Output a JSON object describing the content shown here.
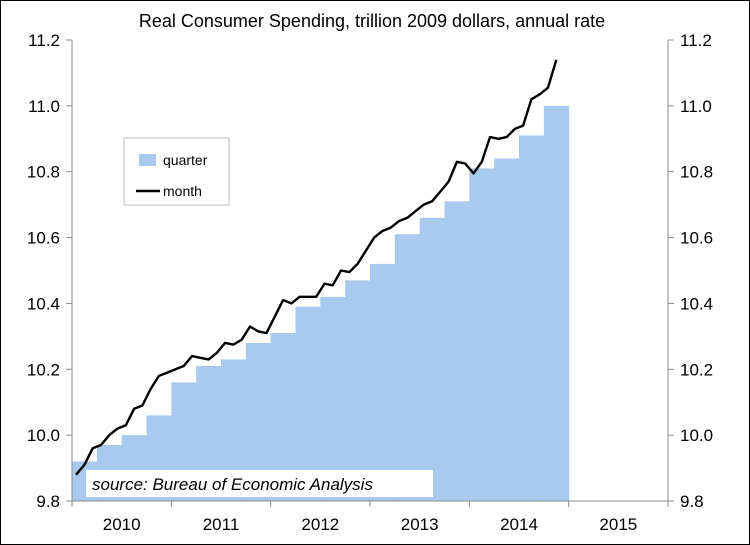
{
  "chart_data": {
    "type": "area",
    "title": "Real Consumer Spending, trillion 2009 dollars, annual rate",
    "xlabel": "",
    "ylabel": "",
    "ylim": [
      9.8,
      11.2
    ],
    "yticks": [
      "9.8",
      "10.0",
      "10.2",
      "10.4",
      "10.6",
      "10.8",
      "11.0",
      "11.2"
    ],
    "secondary_yticks": [
      "9.8",
      "10.0",
      "10.2",
      "10.4",
      "10.6",
      "10.8",
      "11.0",
      "11.2"
    ],
    "x_categories": [
      "2010",
      "2011",
      "2012",
      "2013",
      "2014",
      "2015"
    ],
    "grid": false,
    "legend_position": "left-upper",
    "annotation": "source: Bureau of Economic Analysis",
    "colors": {
      "quarter": "#a9c9ef",
      "month": "#000000"
    },
    "series": [
      {
        "name": "quarter",
        "type": "step-area",
        "x": [
          "2010Q1",
          "2010Q2",
          "2010Q3",
          "2010Q4",
          "2011Q1",
          "2011Q2",
          "2011Q3",
          "2011Q4",
          "2012Q1",
          "2012Q2",
          "2012Q3",
          "2012Q4",
          "2013Q1",
          "2013Q2",
          "2013Q3",
          "2013Q4",
          "2014Q1",
          "2014Q2",
          "2014Q3",
          "2014Q4"
        ],
        "values": [
          9.92,
          9.97,
          10.0,
          10.06,
          10.16,
          10.21,
          10.23,
          10.28,
          10.31,
          10.39,
          10.42,
          10.47,
          10.52,
          10.61,
          10.66,
          10.71,
          10.81,
          10.84,
          10.91,
          11.0
        ]
      },
      {
        "name": "month",
        "type": "line",
        "x": [
          "2010-01",
          "2010-02",
          "2010-03",
          "2010-04",
          "2010-05",
          "2010-06",
          "2010-07",
          "2010-08",
          "2010-09",
          "2010-10",
          "2010-11",
          "2010-12",
          "2011-01",
          "2011-02",
          "2011-03",
          "2011-04",
          "2011-05",
          "2011-06",
          "2011-07",
          "2011-08",
          "2011-09",
          "2011-10",
          "2011-11",
          "2011-12",
          "2012-01",
          "2012-02",
          "2012-03",
          "2012-04",
          "2012-05",
          "2012-06",
          "2012-07",
          "2012-08",
          "2012-09",
          "2012-10",
          "2012-11",
          "2012-12",
          "2013-01",
          "2013-02",
          "2013-03",
          "2013-04",
          "2013-05",
          "2013-06",
          "2013-07",
          "2013-08",
          "2013-09",
          "2013-10",
          "2013-11",
          "2013-12",
          "2014-01",
          "2014-02",
          "2014-03",
          "2014-04",
          "2014-05",
          "2014-06",
          "2014-07",
          "2014-08",
          "2014-09",
          "2014-10",
          "2014-11",
          "2014-12"
        ],
        "values": [
          9.88,
          9.91,
          9.96,
          9.97,
          10.0,
          10.02,
          10.03,
          10.08,
          10.09,
          10.14,
          10.18,
          10.19,
          10.2,
          10.21,
          10.24,
          10.235,
          10.23,
          10.25,
          10.28,
          10.275,
          10.29,
          10.33,
          10.315,
          10.31,
          10.36,
          10.41,
          10.4,
          10.42,
          10.42,
          10.42,
          10.46,
          10.455,
          10.5,
          10.495,
          10.52,
          10.56,
          10.6,
          10.62,
          10.63,
          10.65,
          10.66,
          10.68,
          10.7,
          10.71,
          10.74,
          10.77,
          10.83,
          10.825,
          10.795,
          10.83,
          10.905,
          10.9,
          10.905,
          10.93,
          10.94,
          11.02,
          11.035,
          11.055,
          11.14,
          null
        ]
      }
    ]
  }
}
